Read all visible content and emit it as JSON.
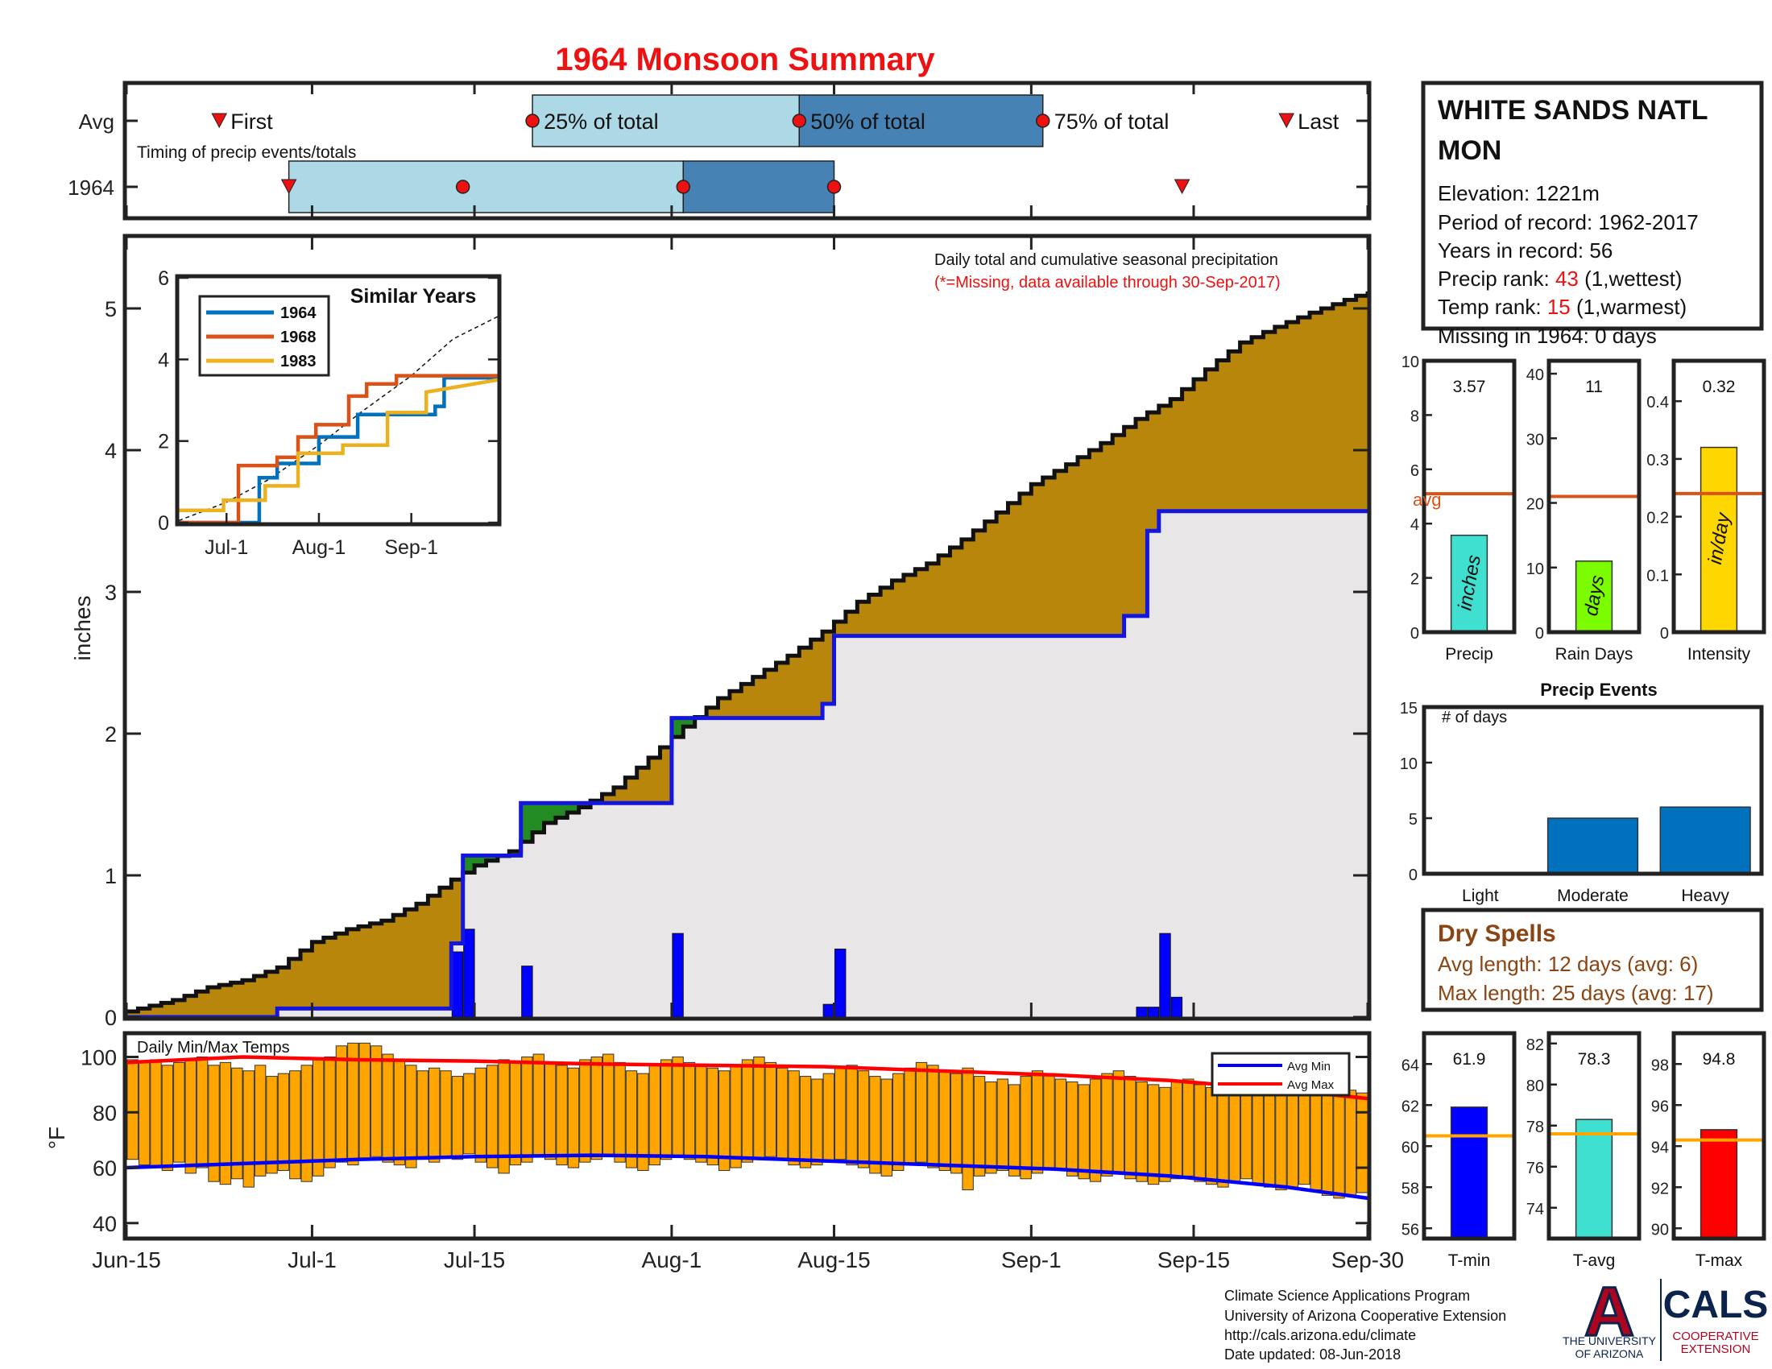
{
  "title": "1964 Monsoon Summary",
  "x_axis": {
    "ticks": [
      "Jun-15",
      "Jul-1",
      "Jul-15",
      "Aug-1",
      "Aug-15",
      "Sep-1",
      "Sep-15",
      "Sep-30"
    ],
    "tick_days": [
      0,
      16,
      30,
      47,
      61,
      78,
      92,
      107
    ]
  },
  "timing": {
    "row_labels": [
      "Avg",
      "1964"
    ],
    "subtitle": "Timing of precip events/totals",
    "avg": {
      "first_day": 8,
      "p25_day": 35,
      "p50_day": 58,
      "p75_day": 79,
      "last_day": 100,
      "first_label": "First",
      "p25_label": "25% of total",
      "p50_label": "50% of total",
      "p75_label": "75% of total",
      "last_label": "Last"
    },
    "year": {
      "first_day": 14,
      "p25_day": 29,
      "p50_day": 48,
      "p75_day": 61,
      "last_day": 91
    }
  },
  "main_chart": {
    "ylabel": "inches",
    "ylim": [
      0,
      5.5
    ],
    "yticks": [
      0,
      1,
      2,
      3,
      4,
      5
    ],
    "note_line1": "Daily total and cumulative seasonal precipitation",
    "note_line2": "(*=Missing, data available through 30-Sep-2017)",
    "avg_cumulative": [
      [
        0,
        0.04
      ],
      [
        4,
        0.12
      ],
      [
        7,
        0.21
      ],
      [
        10,
        0.26
      ],
      [
        13,
        0.35
      ],
      [
        16,
        0.53
      ],
      [
        19,
        0.62
      ],
      [
        22,
        0.68
      ],
      [
        25,
        0.8
      ],
      [
        28,
        0.97
      ],
      [
        30,
        1.07
      ],
      [
        33,
        1.17
      ],
      [
        36,
        1.37
      ],
      [
        39,
        1.48
      ],
      [
        42,
        1.62
      ],
      [
        45,
        1.83
      ],
      [
        48,
        2.05
      ],
      [
        51,
        2.25
      ],
      [
        54,
        2.4
      ],
      [
        57,
        2.55
      ],
      [
        60,
        2.72
      ],
      [
        63,
        2.93
      ],
      [
        66,
        3.08
      ],
      [
        69,
        3.2
      ],
      [
        72,
        3.37
      ],
      [
        75,
        3.56
      ],
      [
        78,
        3.76
      ],
      [
        81,
        3.9
      ],
      [
        84,
        4.05
      ],
      [
        87,
        4.22
      ],
      [
        90,
        4.36
      ],
      [
        93,
        4.57
      ],
      [
        96,
        4.76
      ],
      [
        99,
        4.87
      ],
      [
        102,
        4.97
      ],
      [
        105,
        5.06
      ],
      [
        107,
        5.12
      ]
    ],
    "year_cumulative": [
      [
        0,
        0
      ],
      [
        13,
        0
      ],
      [
        13,
        0.06
      ],
      [
        28,
        0.06
      ],
      [
        28,
        0.52
      ],
      [
        29,
        0.52
      ],
      [
        29,
        1.14
      ],
      [
        34,
        1.14
      ],
      [
        34,
        1.51
      ],
      [
        47,
        1.51
      ],
      [
        47,
        2.11
      ],
      [
        60,
        2.11
      ],
      [
        60,
        2.21
      ],
      [
        61,
        2.21
      ],
      [
        61,
        2.69
      ],
      [
        86,
        2.69
      ],
      [
        86,
        2.83
      ],
      [
        88,
        2.83
      ],
      [
        88,
        3.43
      ],
      [
        89,
        3.43
      ],
      [
        89,
        3.57
      ],
      [
        107,
        3.57
      ]
    ],
    "daily_bars": [
      [
        28,
        0.46
      ],
      [
        29,
        0.62
      ],
      [
        34,
        0.36
      ],
      [
        47,
        0.59
      ],
      [
        60,
        0.09
      ],
      [
        61,
        0.48
      ],
      [
        87,
        0.07
      ],
      [
        88,
        0.07
      ],
      [
        89,
        0.59
      ],
      [
        90,
        0.14
      ]
    ]
  },
  "inset": {
    "title": "Similar Years",
    "yticks": [
      0,
      2,
      4,
      6
    ],
    "ylim": [
      0,
      6
    ],
    "xticks": [
      "Jul-1",
      "Aug-1",
      "Sep-1"
    ],
    "xtick_days": [
      16,
      47,
      78
    ],
    "series": [
      {
        "name": "1964",
        "color": "#0072bd",
        "points": [
          [
            0,
            0
          ],
          [
            27,
            0
          ],
          [
            27,
            1.1
          ],
          [
            33,
            1.1
          ],
          [
            33,
            1.45
          ],
          [
            47,
            1.45
          ],
          [
            47,
            2.1
          ],
          [
            60,
            2.1
          ],
          [
            60,
            2.65
          ],
          [
            86,
            2.65
          ],
          [
            86,
            2.85
          ],
          [
            89,
            2.85
          ],
          [
            89,
            3.55
          ],
          [
            107,
            3.55
          ]
        ]
      },
      {
        "name": "1968",
        "color": "#d95319",
        "points": [
          [
            0,
            0
          ],
          [
            20,
            0
          ],
          [
            20,
            1.4
          ],
          [
            33,
            1.4
          ],
          [
            33,
            1.6
          ],
          [
            40,
            1.6
          ],
          [
            40,
            2.1
          ],
          [
            46,
            2.1
          ],
          [
            46,
            2.4
          ],
          [
            57,
            2.4
          ],
          [
            57,
            3.1
          ],
          [
            63,
            3.1
          ],
          [
            63,
            3.4
          ],
          [
            73,
            3.4
          ],
          [
            73,
            3.6
          ],
          [
            107,
            3.6
          ]
        ]
      },
      {
        "name": "1983",
        "color": "#edb120",
        "points": [
          [
            0,
            0.3
          ],
          [
            15,
            0.3
          ],
          [
            15,
            0.55
          ],
          [
            29,
            0.55
          ],
          [
            29,
            0.9
          ],
          [
            40,
            0.9
          ],
          [
            40,
            1.7
          ],
          [
            55,
            1.7
          ],
          [
            55,
            1.9
          ],
          [
            70,
            1.9
          ],
          [
            70,
            2.7
          ],
          [
            83,
            2.7
          ],
          [
            83,
            3.2
          ],
          [
            107,
            3.5
          ]
        ]
      }
    ],
    "avg_line": [
      [
        0,
        0.05
      ],
      [
        16,
        0.5
      ],
      [
        30,
        1.05
      ],
      [
        47,
        1.9
      ],
      [
        61,
        2.7
      ],
      [
        78,
        3.6
      ],
      [
        92,
        4.5
      ],
      [
        107,
        5.05
      ]
    ]
  },
  "station": {
    "name_line1": "WHITE SANDS NATL",
    "name_line2": "MON",
    "elevation": "Elevation: 1221m",
    "period": "Period of record: 1962-2017",
    "years": "Years in record: 56",
    "precip_rank_label": "Precip rank: ",
    "precip_rank_value": "43",
    "precip_rank_suffix": " (1,wettest)",
    "temp_rank_label": "Temp rank: ",
    "temp_rank_value": "15",
    "temp_rank_suffix": " (1,warmest)",
    "missing": "Missing in 1964: 0 days"
  },
  "summary_bars": [
    {
      "label": "Precip",
      "unit": "inches",
      "value": 3.57,
      "value_text": "3.57",
      "avg": 5.1,
      "avg_label": "avg",
      "ylim": [
        0,
        10
      ],
      "yticks": [
        "0",
        "2",
        "4",
        "6",
        "8",
        "10"
      ],
      "color": "#40e0d0"
    },
    {
      "label": "Rain Days",
      "unit": "days",
      "value": 11,
      "value_text": "11",
      "avg": 21,
      "ylim": [
        0,
        42
      ],
      "yticks": [
        "0",
        "10",
        "20",
        "30",
        "40"
      ],
      "color": "#7cfc00"
    },
    {
      "label": "Intensity",
      "unit": "in/day",
      "value": 0.32,
      "value_text": "0.32",
      "avg": 0.24,
      "ylim": [
        0,
        0.47
      ],
      "yticks": [
        "0",
        "0.1",
        "0.2",
        "0.3",
        "0.4"
      ],
      "color": "#ffd700"
    }
  ],
  "precip_events": {
    "title": "Precip Events",
    "ylabel": "# of days",
    "ylim": [
      0,
      15
    ],
    "yticks": [
      "0",
      "5",
      "10",
      "15"
    ],
    "categories": [
      "Light",
      "Moderate",
      "Heavy"
    ],
    "values": [
      0,
      5,
      6
    ]
  },
  "dry_spells": {
    "title": "Dry Spells",
    "avg_length": "Avg length: 12 days (avg: 6)",
    "max_length": "Max length: 25 days (avg: 17)"
  },
  "temp_chart": {
    "title": "Daily Min/Max Temps",
    "ylabel": "°F",
    "ylim": [
      35,
      108
    ],
    "yticks": [
      40,
      60,
      80,
      100
    ],
    "legend_min": "Avg Min",
    "legend_max": "Avg Max",
    "avg_max": [
      [
        0,
        98
      ],
      [
        10,
        100
      ],
      [
        20,
        99
      ],
      [
        30,
        98.5
      ],
      [
        40,
        97.5
      ],
      [
        50,
        97
      ],
      [
        60,
        96.5
      ],
      [
        70,
        95
      ],
      [
        80,
        93.5
      ],
      [
        90,
        91.5
      ],
      [
        100,
        88
      ],
      [
        107,
        85
      ]
    ],
    "avg_min": [
      [
        0,
        60
      ],
      [
        10,
        61.5
      ],
      [
        20,
        63
      ],
      [
        30,
        64
      ],
      [
        40,
        64.5
      ],
      [
        50,
        64
      ],
      [
        60,
        62.5
      ],
      [
        70,
        61
      ],
      [
        80,
        59.5
      ],
      [
        90,
        57
      ],
      [
        100,
        53
      ],
      [
        107,
        49
      ]
    ],
    "days": [
      [
        63,
        99
      ],
      [
        61,
        98
      ],
      [
        60,
        99
      ],
      [
        59,
        97
      ],
      [
        62,
        98
      ],
      [
        58,
        99
      ],
      [
        60,
        100
      ],
      [
        55,
        97
      ],
      [
        54,
        98
      ],
      [
        56,
        96
      ],
      [
        53,
        95
      ],
      [
        57,
        97
      ],
      [
        58,
        93
      ],
      [
        59,
        94
      ],
      [
        56,
        95
      ],
      [
        55,
        97
      ],
      [
        57,
        99
      ],
      [
        60,
        100
      ],
      [
        62,
        104
      ],
      [
        61,
        105
      ],
      [
        63,
        105
      ],
      [
        64,
        104
      ],
      [
        62,
        101
      ],
      [
        61,
        99
      ],
      [
        60,
        97
      ],
      [
        63,
        95
      ],
      [
        62,
        96
      ],
      [
        64,
        95
      ],
      [
        63,
        93
      ],
      [
        65,
        94
      ],
      [
        62,
        96
      ],
      [
        60,
        97
      ],
      [
        58,
        99
      ],
      [
        61,
        98
      ],
      [
        62,
        100
      ],
      [
        64,
        101
      ],
      [
        63,
        98
      ],
      [
        61,
        97
      ],
      [
        60,
        96
      ],
      [
        62,
        99
      ],
      [
        63,
        100
      ],
      [
        64,
        101
      ],
      [
        62,
        98
      ],
      [
        60,
        95
      ],
      [
        59,
        94
      ],
      [
        61,
        97
      ],
      [
        63,
        99
      ],
      [
        64,
        100
      ],
      [
        63,
        98
      ],
      [
        62,
        97
      ],
      [
        61,
        96
      ],
      [
        59,
        95
      ],
      [
        60,
        97
      ],
      [
        62,
        99
      ],
      [
        63,
        100
      ],
      [
        64,
        98
      ],
      [
        63,
        96
      ],
      [
        61,
        95
      ],
      [
        60,
        93
      ],
      [
        61,
        92
      ],
      [
        62,
        94
      ],
      [
        63,
        96
      ],
      [
        61,
        97
      ],
      [
        60,
        95
      ],
      [
        58,
        93
      ],
      [
        57,
        92
      ],
      [
        59,
        94
      ],
      [
        61,
        96
      ],
      [
        62,
        98
      ],
      [
        60,
        97
      ],
      [
        59,
        95
      ],
      [
        58,
        94
      ],
      [
        52,
        96
      ],
      [
        57,
        93
      ],
      [
        58,
        91
      ],
      [
        59,
        92
      ],
      [
        57,
        90
      ],
      [
        56,
        93
      ],
      [
        58,
        95
      ],
      [
        60,
        94
      ],
      [
        59,
        92
      ],
      [
        57,
        91
      ],
      [
        56,
        90
      ],
      [
        55,
        92
      ],
      [
        57,
        94
      ],
      [
        58,
        95
      ],
      [
        56,
        93
      ],
      [
        55,
        91
      ],
      [
        54,
        90
      ],
      [
        55,
        89
      ],
      [
        56,
        91
      ],
      [
        57,
        92
      ],
      [
        55,
        90
      ],
      [
        54,
        89
      ],
      [
        53,
        88
      ],
      [
        55,
        90
      ],
      [
        56,
        91
      ],
      [
        54,
        89
      ],
      [
        53,
        88
      ],
      [
        52,
        87
      ],
      [
        53,
        89
      ],
      [
        54,
        90
      ],
      [
        52,
        88
      ],
      [
        50,
        87
      ],
      [
        49,
        86
      ],
      [
        50,
        88
      ],
      [
        51,
        87
      ]
    ]
  },
  "temp_bars": [
    {
      "label": "T-min",
      "value": 61.9,
      "value_text": "61.9",
      "avg": 60.5,
      "ylim": [
        55.5,
        65.5
      ],
      "yticks": [
        "56",
        "58",
        "60",
        "62",
        "64"
      ],
      "color": "#0000ff"
    },
    {
      "label": "T-avg",
      "value": 78.3,
      "value_text": "78.3",
      "avg": 77.6,
      "ylim": [
        72.5,
        82.5
      ],
      "yticks": [
        "74",
        "76",
        "78",
        "80",
        "82"
      ],
      "color": "#40e0d0"
    },
    {
      "label": "T-max",
      "value": 94.8,
      "value_text": "94.8",
      "avg": 94.3,
      "ylim": [
        89.5,
        99.5
      ],
      "yticks": [
        "90",
        "92",
        "94",
        "96",
        "98"
      ],
      "color": "#ff0000"
    }
  ],
  "footer": {
    "line1": "Climate Science Applications Program",
    "line2": "University of Arizona Cooperative Extension",
    "line3": "http://cals.arizona.edu/climate",
    "line4": " Date updated: 08-Jun-2018"
  },
  "logo": {
    "letter": "A",
    "univ_line1": "THE UNIVERSITY",
    "univ_line2": "OF ARIZONA",
    "cals": "CALS",
    "coop_line1": "COOPERATIVE",
    "coop_line2": "EXTENSION"
  },
  "colors": {
    "title": "#ee1111",
    "red_text": "#ee1111",
    "avg_fill": "#b8860b",
    "year_fill": "#e8e6e6",
    "excess_fill": "#228b22",
    "year_line": "#1515e0",
    "temp_bar": "#ffa500",
    "avg_line_orange": "#d95319",
    "dry_spell_text": "#8b4513",
    "event_bar": "#0072bd",
    "ua_navy": "#0c234b",
    "ua_red": "#ab0520"
  }
}
